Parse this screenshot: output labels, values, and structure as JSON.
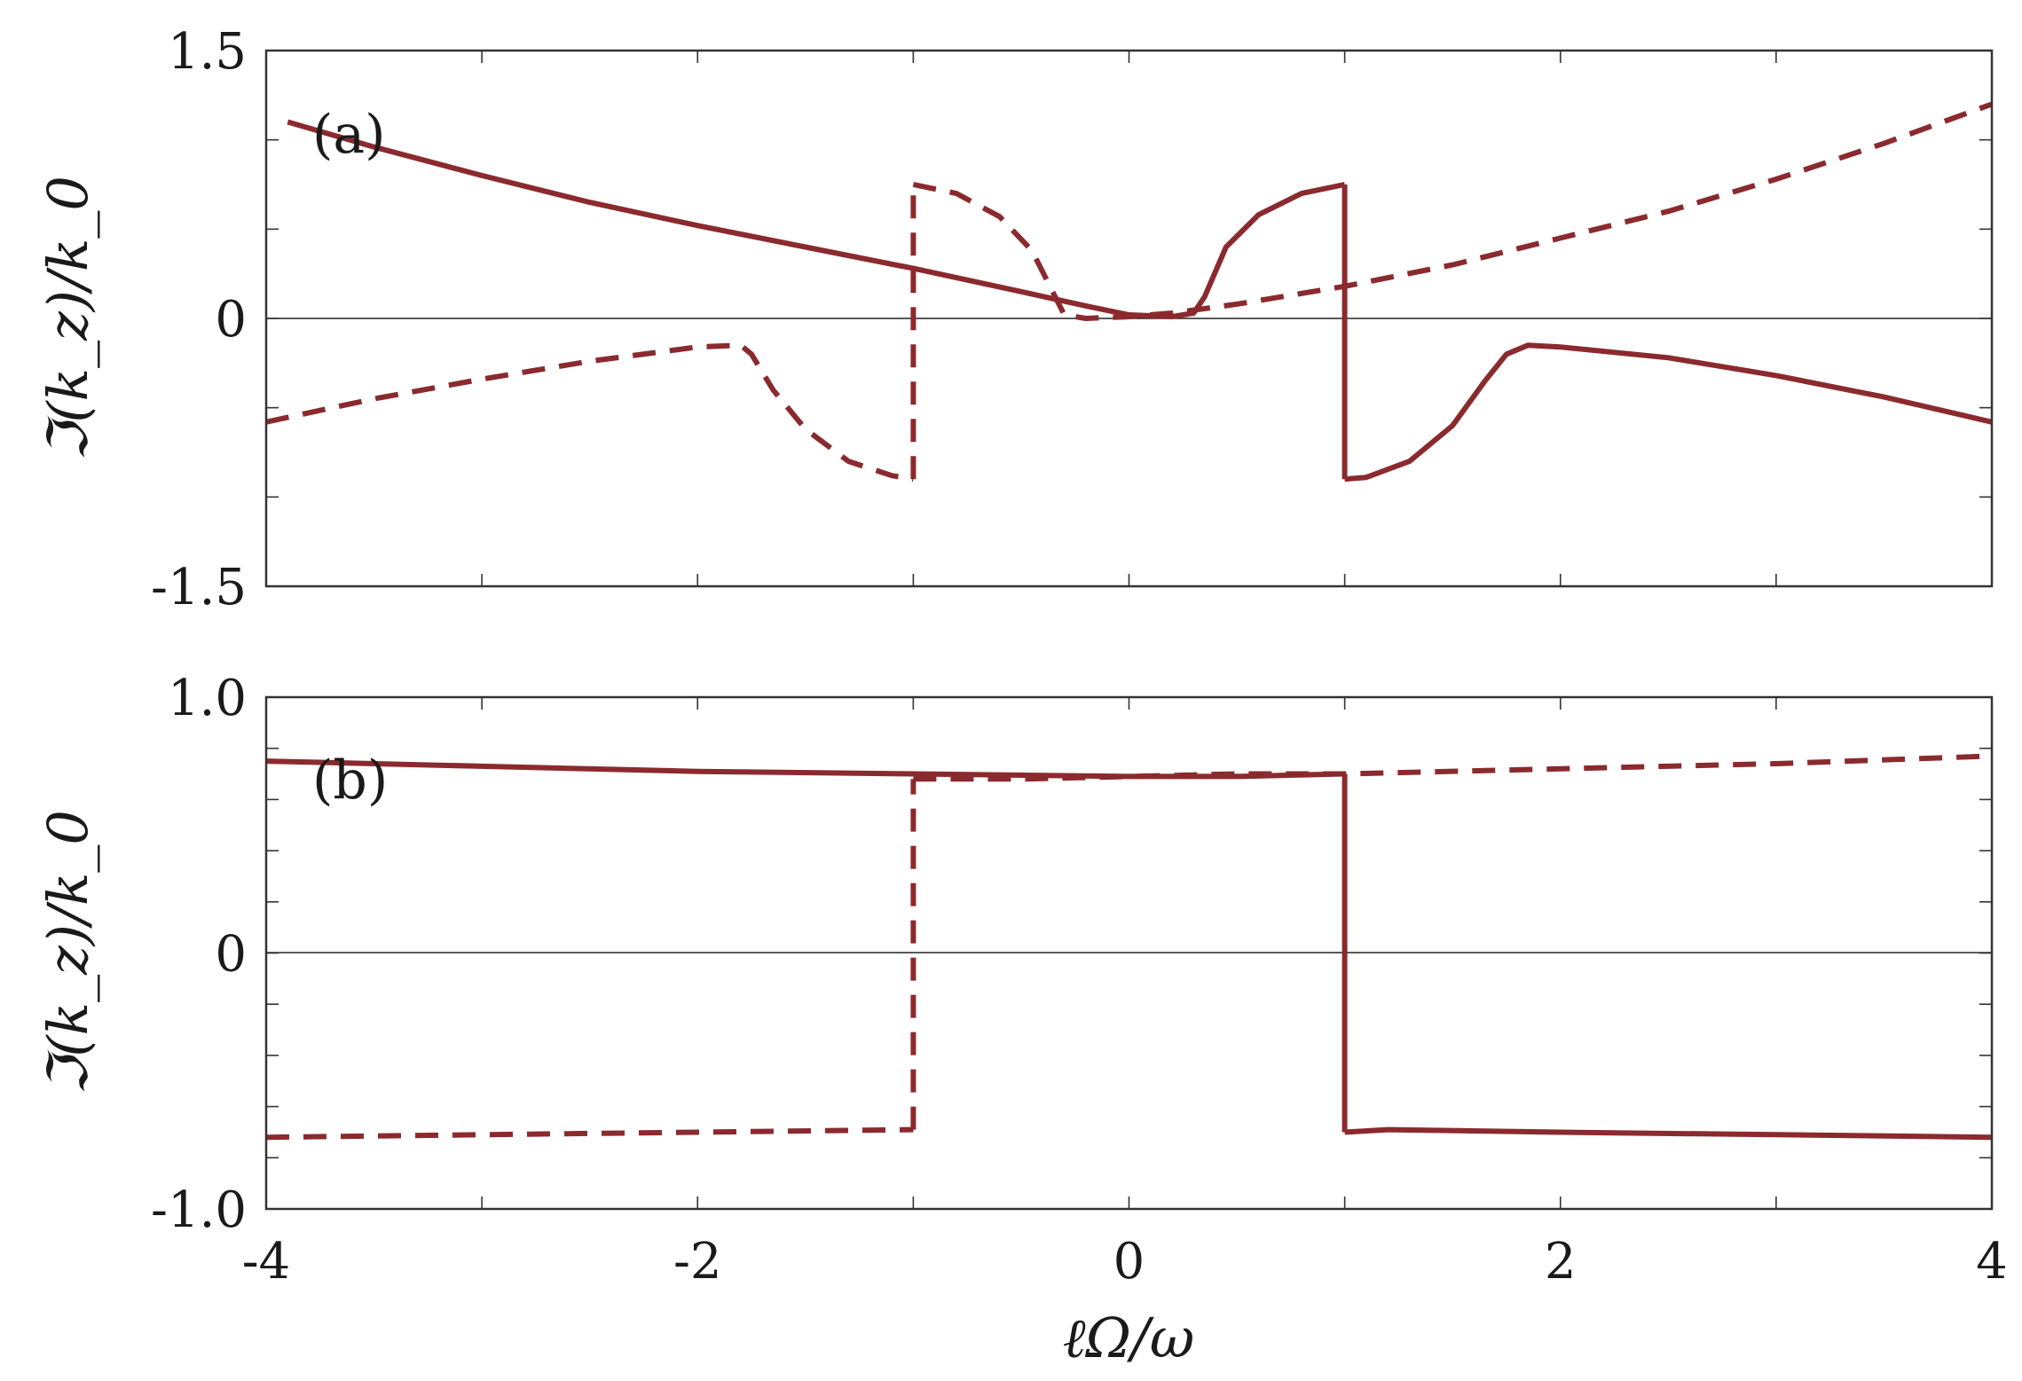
{
  "chart_data": [
    {
      "type": "line",
      "panel_label": "(a)",
      "ylabel": "ℑ(k_z)/k_0",
      "xlabel": "",
      "xlim": [
        -4,
        4
      ],
      "ylim": [
        -1.5,
        1.5
      ],
      "yticks": [
        -1.5,
        -1.0,
        -0.5,
        0,
        0.5,
        1.0,
        1.5
      ],
      "ytick_labels": [
        "-1.5",
        "",
        "",
        "0",
        "",
        "",
        "1.5"
      ],
      "xticks": [
        -4,
        -3,
        -2,
        -1,
        0,
        1,
        2,
        3,
        4
      ],
      "xtick_labels": [
        "",
        "",
        "",
        "",
        "",
        "",
        "",
        "",
        ""
      ],
      "zero_line": true,
      "grid": false,
      "color": "#8b2a2e",
      "series": [
        {
          "style": "solid",
          "segments": [
            {
              "x": [
                -3.9,
                -3.5,
                -3.0,
                -2.5,
                -2.0,
                -1.5,
                -1.0,
                -0.5,
                -0.2,
                0.0,
                0.2,
                0.3,
                0.35,
                0.45,
                0.6,
                0.8,
                1.0
              ],
              "y": [
                1.1,
                0.96,
                0.8,
                0.65,
                0.52,
                0.4,
                0.28,
                0.15,
                0.07,
                0.02,
                0.01,
                0.03,
                0.12,
                0.4,
                0.58,
                0.7,
                0.75
              ]
            },
            {
              "x": [
                1.0,
                1.1,
                1.3,
                1.5,
                1.65,
                1.75,
                1.85,
                2.0,
                2.5,
                3.0,
                3.5,
                4.0
              ],
              "y": [
                -0.9,
                -0.89,
                -0.8,
                -0.6,
                -0.35,
                -0.2,
                -0.15,
                -0.16,
                -0.22,
                -0.32,
                -0.44,
                -0.58
              ]
            }
          ]
        },
        {
          "style": "dashed",
          "segments": [
            {
              "x": [
                -4.0,
                -3.5,
                -3.0,
                -2.5,
                -2.0,
                -1.8,
                -1.75,
                -1.65,
                -1.5,
                -1.3,
                -1.1,
                -1.0
              ],
              "y": [
                -0.58,
                -0.45,
                -0.34,
                -0.24,
                -0.16,
                -0.15,
                -0.2,
                -0.4,
                -0.62,
                -0.8,
                -0.88,
                -0.9
              ]
            },
            {
              "x": [
                -1.0,
                -0.8,
                -0.6,
                -0.45,
                -0.35,
                -0.3,
                -0.2,
                0.0,
                0.2,
                0.5,
                1.0,
                1.5,
                2.0,
                2.5,
                3.0,
                3.5,
                4.0
              ],
              "y": [
                0.75,
                0.7,
                0.57,
                0.38,
                0.14,
                0.02,
                0.0,
                0.01,
                0.03,
                0.08,
                0.18,
                0.3,
                0.45,
                0.6,
                0.78,
                0.98,
                1.2
              ]
            }
          ]
        }
      ]
    },
    {
      "type": "line",
      "panel_label": "(b)",
      "ylabel": "ℑ(k_z)/k_0",
      "xlabel": "ℓΩ/ω",
      "xlim": [
        -4,
        4
      ],
      "ylim": [
        -1.0,
        1.0
      ],
      "yticks": [
        -1.0,
        -0.8,
        -0.6,
        -0.4,
        -0.2,
        0,
        0.2,
        0.4,
        0.6,
        0.8,
        1.0
      ],
      "ytick_labels": [
        "-1.0",
        "",
        "",
        "",
        "",
        "0",
        "",
        "",
        "",
        "",
        "1.0"
      ],
      "xticks": [
        -4,
        -3,
        -2,
        -1,
        0,
        1,
        2,
        3,
        4
      ],
      "xtick_labels": [
        "-4",
        "",
        "-2",
        "",
        "0",
        "",
        "2",
        "",
        "4"
      ],
      "zero_line": true,
      "grid": false,
      "color": "#8b2a2e",
      "series": [
        {
          "style": "solid",
          "segments": [
            {
              "x": [
                -4.0,
                -3.0,
                -2.0,
                -1.0,
                0.0,
                0.5,
                1.0
              ],
              "y": [
                0.75,
                0.73,
                0.71,
                0.7,
                0.69,
                0.69,
                0.7
              ]
            },
            {
              "x": [
                1.0,
                1.2,
                2.0,
                3.0,
                4.0
              ],
              "y": [
                -0.7,
                -0.69,
                -0.7,
                -0.71,
                -0.72
              ]
            }
          ]
        },
        {
          "style": "dashed",
          "segments": [
            {
              "x": [
                -4.0,
                -3.0,
                -2.0,
                -1.0
              ],
              "y": [
                -0.72,
                -0.71,
                -0.7,
                -0.69
              ]
            },
            {
              "x": [
                -1.0,
                -0.5,
                0.0,
                0.5,
                1.0,
                2.0,
                3.0,
                4.0
              ],
              "y": [
                0.68,
                0.68,
                0.69,
                0.7,
                0.7,
                0.72,
                0.74,
                0.77
              ]
            }
          ]
        }
      ]
    }
  ]
}
